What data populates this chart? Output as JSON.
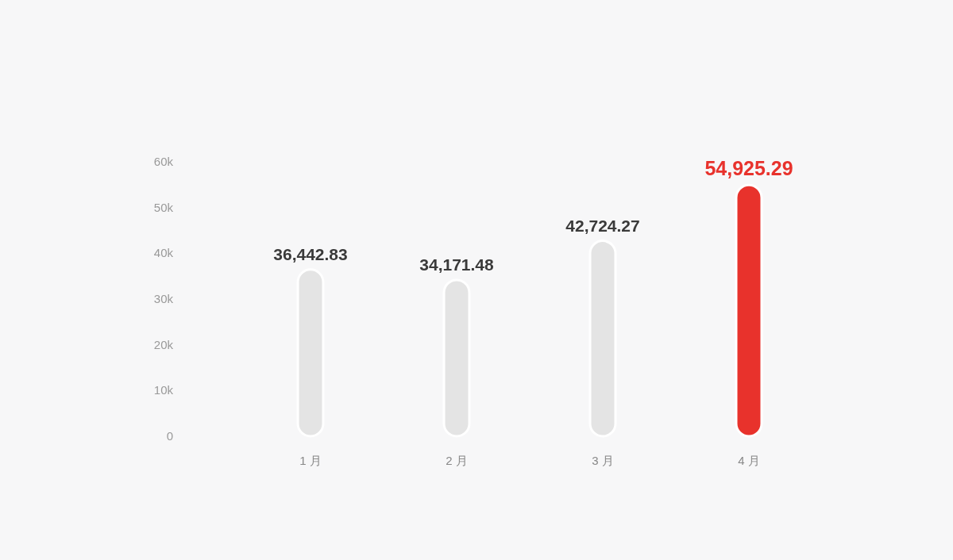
{
  "chart_data": {
    "type": "bar",
    "categories": [
      "1 月",
      "2 月",
      "3 月",
      "4 月"
    ],
    "values": [
      36442.83,
      34171.48,
      42724.27,
      54925.29
    ],
    "colors": [
      "#e4e4e4",
      "#e4e4e4",
      "#e4e4e4",
      "#e8322c"
    ],
    "value_labels": [
      "36,442.83",
      "34,171.48",
      "42,724.27",
      "54,925.29"
    ],
    "ylim": [
      0,
      60000
    ],
    "yticks": [
      {
        "value": 0,
        "label": "0"
      },
      {
        "value": 10000,
        "label": "10k"
      },
      {
        "value": 20000,
        "label": "20k"
      },
      {
        "value": 30000,
        "label": "30k"
      },
      {
        "value": 40000,
        "label": "40k"
      },
      {
        "value": 50000,
        "label": "50k"
      },
      {
        "value": 60000,
        "label": "60k"
      }
    ],
    "grid": false
  }
}
